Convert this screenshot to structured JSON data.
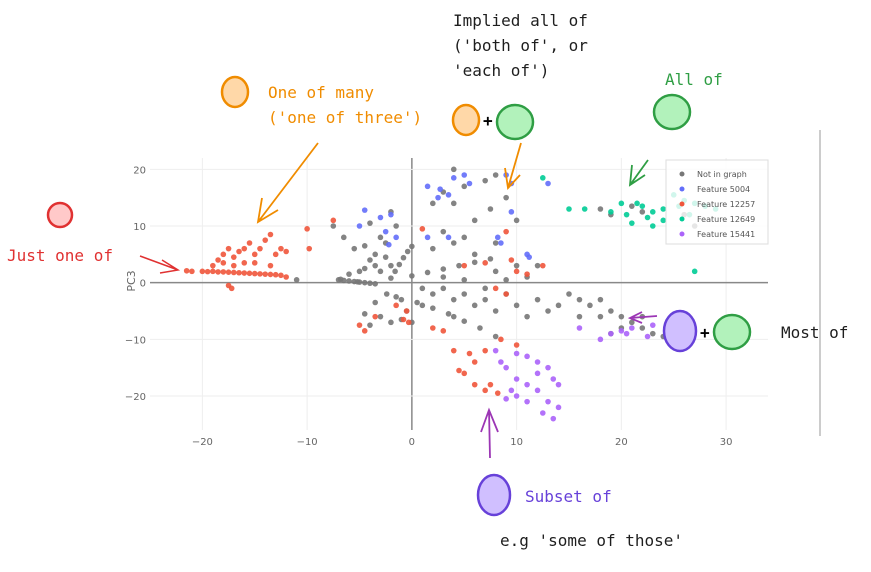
{
  "chart_data": {
    "type": "scatter",
    "title": "",
    "xlabel": "",
    "ylabel": "PC3",
    "xlim": [
      -25,
      34
    ],
    "ylim": [
      -26,
      22
    ],
    "x_ticks": [
      -20,
      -10,
      0,
      10,
      20,
      30
    ],
    "y_ticks": [
      20,
      10,
      0,
      -10,
      -20
    ],
    "grid": true,
    "legend_position": "top-right",
    "series": [
      {
        "name": "Not in graph",
        "color": "#777777",
        "points": [
          [
            -7,
            0.5
          ],
          [
            -6.5,
            0.4
          ],
          [
            -6,
            0.3
          ],
          [
            -5.5,
            0.2
          ],
          [
            -5,
            0.1
          ],
          [
            -4.5,
            0
          ],
          [
            -4,
            -0.1
          ],
          [
            -3.5,
            -0.2
          ],
          [
            -6.8,
            0.6
          ],
          [
            -5.2,
            0.15
          ],
          [
            -2,
            0.8
          ],
          [
            -1.6,
            2
          ],
          [
            -1.2,
            3.2
          ],
          [
            -0.8,
            4.4
          ],
          [
            -0.4,
            5.5
          ],
          [
            0,
            6.4
          ],
          [
            0,
            1.2
          ],
          [
            1.5,
            1.8
          ],
          [
            3,
            2.4
          ],
          [
            4.5,
            3
          ],
          [
            6,
            3.6
          ],
          [
            7.5,
            4.2
          ],
          [
            -2.4,
            -2
          ],
          [
            -1,
            -3
          ],
          [
            0.5,
            -3.5
          ],
          [
            2,
            -4.5
          ],
          [
            3.5,
            -5.5
          ],
          [
            5,
            -6.8
          ],
          [
            6.5,
            -8
          ],
          [
            8,
            -9.5
          ],
          [
            -1.5,
            -2.5
          ],
          [
            1,
            -4
          ],
          [
            4,
            -6
          ],
          [
            -7.5,
            10
          ],
          [
            -6.5,
            8
          ],
          [
            -5.5,
            6
          ],
          [
            -4.5,
            6.5
          ],
          [
            -4,
            4
          ],
          [
            -3.5,
            5
          ],
          [
            -3,
            8
          ],
          [
            -2.5,
            7
          ],
          [
            -2,
            3
          ],
          [
            -3,
            2
          ],
          [
            -5,
            2
          ],
          [
            -6,
            1.5
          ],
          [
            -4,
            10.5
          ],
          [
            -2,
            12.5
          ],
          [
            -1.5,
            10
          ],
          [
            -3.5,
            3
          ],
          [
            -2.5,
            4.5
          ],
          [
            -4.5,
            2.5
          ],
          [
            -11,
            0.5
          ],
          [
            -4.5,
            -5.5
          ],
          [
            -4,
            -7.5
          ],
          [
            -3,
            -6
          ],
          [
            -2,
            -7
          ],
          [
            -1,
            -6.5
          ],
          [
            -0.5,
            -5
          ],
          [
            0,
            -7
          ],
          [
            -3.5,
            -3.5
          ],
          [
            1,
            -1
          ],
          [
            2,
            -2
          ],
          [
            3,
            -1
          ],
          [
            4,
            -3
          ],
          [
            5,
            -2
          ],
          [
            6,
            -4
          ],
          [
            7,
            -3
          ],
          [
            8,
            -5
          ],
          [
            9,
            -2
          ],
          [
            10,
            -4
          ],
          [
            11,
            -6
          ],
          [
            7,
            -1
          ],
          [
            5,
            0.5
          ],
          [
            3,
            1
          ],
          [
            8,
            2
          ],
          [
            9,
            0.5
          ],
          [
            10,
            3
          ],
          [
            11,
            1
          ],
          [
            12,
            3
          ],
          [
            6,
            5
          ],
          [
            4,
            7
          ],
          [
            2,
            6
          ],
          [
            8,
            7
          ],
          [
            12,
            -3
          ],
          [
            13,
            -5
          ],
          [
            4,
            20
          ],
          [
            7,
            18
          ],
          [
            8,
            19
          ],
          [
            5,
            17
          ],
          [
            3,
            16
          ],
          [
            7.5,
            13
          ],
          [
            9,
            15
          ],
          [
            2,
            14
          ],
          [
            4,
            14
          ],
          [
            6,
            11
          ],
          [
            10,
            11
          ],
          [
            3,
            9
          ],
          [
            5,
            8
          ],
          [
            15,
            -2
          ],
          [
            16,
            -3
          ],
          [
            17,
            -4
          ],
          [
            18,
            -3
          ],
          [
            19,
            -5
          ],
          [
            20,
            -6
          ],
          [
            21,
            -7
          ],
          [
            22,
            -8
          ],
          [
            23,
            -9
          ],
          [
            18,
            -6
          ],
          [
            20,
            -8
          ],
          [
            16,
            -6
          ],
          [
            22,
            -6
          ],
          [
            14,
            -4
          ],
          [
            19,
            -9
          ],
          [
            24,
            -9.5
          ],
          [
            18,
            13
          ],
          [
            19,
            12
          ],
          [
            21,
            13.5
          ],
          [
            22,
            12.5
          ],
          [
            26,
            12
          ],
          [
            27,
            10
          ]
        ]
      },
      {
        "name": "Feature 5004",
        "color": "#636efa",
        "points": [
          [
            -3,
            11.5
          ],
          [
            -2,
            12
          ],
          [
            -2.5,
            9
          ],
          [
            -1.5,
            8
          ],
          [
            -5,
            10
          ],
          [
            -4.5,
            12.8
          ],
          [
            1.5,
            17
          ],
          [
            2.7,
            16.5
          ],
          [
            4,
            18.5
          ],
          [
            5,
            19
          ],
          [
            5.5,
            17.5
          ],
          [
            9,
            19
          ],
          [
            9.5,
            17.5
          ],
          [
            13,
            17.5
          ],
          [
            2.5,
            15
          ],
          [
            3.5,
            15.5
          ],
          [
            9.5,
            12.5
          ],
          [
            1.5,
            8
          ],
          [
            3.5,
            8
          ],
          [
            8.2,
            8
          ],
          [
            8.5,
            7
          ],
          [
            11,
            5
          ],
          [
            11.2,
            4.5
          ],
          [
            -2.2,
            6.7
          ]
        ]
      },
      {
        "name": "Feature 12257",
        "color": "#ef553b",
        "points": [
          [
            -21,
            2
          ],
          [
            -20,
            2
          ],
          [
            -19,
            2
          ],
          [
            -18,
            1.9
          ],
          [
            -17,
            1.8
          ],
          [
            -16,
            1.7
          ],
          [
            -15,
            1.6
          ],
          [
            -14,
            1.5
          ],
          [
            -13,
            1.4
          ],
          [
            -21.5,
            2.1
          ],
          [
            -19.5,
            1.95
          ],
          [
            -18.5,
            1.9
          ],
          [
            -17.5,
            1.85
          ],
          [
            -16.5,
            1.75
          ],
          [
            -15.5,
            1.65
          ],
          [
            -14.5,
            1.55
          ],
          [
            -13.5,
            1.45
          ],
          [
            -12.5,
            1.3
          ],
          [
            -12,
            1
          ],
          [
            -19,
            3
          ],
          [
            -18.5,
            4
          ],
          [
            -18,
            5
          ],
          [
            -17.5,
            6
          ],
          [
            -17,
            4.5
          ],
          [
            -16.5,
            5.5
          ],
          [
            -16,
            6
          ],
          [
            -15.5,
            7
          ],
          [
            -15,
            5
          ],
          [
            -14.5,
            6
          ],
          [
            -14,
            7.5
          ],
          [
            -13.5,
            8.5
          ],
          [
            -13,
            5
          ],
          [
            -12.5,
            6
          ],
          [
            -12,
            5.5
          ],
          [
            -18,
            3.5
          ],
          [
            -17,
            3
          ],
          [
            -16,
            3.5
          ],
          [
            -15,
            3.5
          ],
          [
            -13.5,
            3
          ],
          [
            -17.5,
            -0.5
          ],
          [
            -17.2,
            -1
          ],
          [
            -10,
            9.5
          ],
          [
            -9.8,
            6
          ],
          [
            -7.5,
            11
          ],
          [
            1,
            9.5
          ],
          [
            -5,
            -7.5
          ],
          [
            -4.5,
            -8.5
          ],
          [
            -3.5,
            -6
          ],
          [
            -1.5,
            -4
          ],
          [
            -0.5,
            -5
          ],
          [
            -0.8,
            -6.5
          ],
          [
            -0.3,
            -7
          ],
          [
            2,
            -8
          ],
          [
            3,
            -8.5
          ],
          [
            5,
            3
          ],
          [
            7,
            3.5
          ],
          [
            9.5,
            4
          ],
          [
            10,
            2
          ],
          [
            12.5,
            3
          ],
          [
            11,
            1.5
          ],
          [
            9,
            9
          ],
          [
            8,
            -1
          ],
          [
            9,
            -2
          ],
          [
            8.5,
            -10
          ],
          [
            7,
            -12
          ],
          [
            6,
            -14
          ],
          [
            5,
            -16
          ],
          [
            6,
            -18
          ],
          [
            7,
            -19
          ],
          [
            7.5,
            -18
          ],
          [
            8.2,
            -19.5
          ],
          [
            4,
            -12
          ],
          [
            5.5,
            -12.5
          ],
          [
            4.5,
            -15.5
          ],
          [
            10,
            -11
          ]
        ]
      },
      {
        "name": "Feature 12649",
        "color": "#00cc96",
        "points": [
          [
            16.5,
            13
          ],
          [
            15,
            13
          ],
          [
            20,
            14
          ],
          [
            20.5,
            12
          ],
          [
            21,
            10.5
          ],
          [
            22,
            13.5
          ],
          [
            23,
            12.5
          ],
          [
            24,
            11
          ],
          [
            25,
            15.5
          ],
          [
            26,
            14.5
          ],
          [
            27,
            14
          ],
          [
            28,
            13.5
          ],
          [
            29,
            13
          ],
          [
            22.5,
            11.5
          ],
          [
            24,
            13
          ],
          [
            25.5,
            13.5
          ],
          [
            26.5,
            12
          ],
          [
            23,
            10
          ],
          [
            27,
            2
          ],
          [
            12.5,
            18.5
          ],
          [
            19,
            12.5
          ],
          [
            21.5,
            14
          ]
        ]
      },
      {
        "name": "Feature 15441",
        "color": "#ab63fa",
        "points": [
          [
            8,
            -12
          ],
          [
            10,
            -12.5
          ],
          [
            11,
            -13
          ],
          [
            12,
            -14
          ],
          [
            13,
            -15
          ],
          [
            9,
            -15
          ],
          [
            10,
            -17
          ],
          [
            11,
            -18
          ],
          [
            12,
            -19
          ],
          [
            13,
            -21
          ],
          [
            14,
            -22
          ],
          [
            12.5,
            -23
          ],
          [
            13.5,
            -24
          ],
          [
            11,
            -21
          ],
          [
            10,
            -20
          ],
          [
            9,
            -20.5
          ],
          [
            9.5,
            -19
          ],
          [
            12,
            -16
          ],
          [
            14,
            -18
          ],
          [
            13.5,
            -17
          ],
          [
            8.5,
            -14
          ],
          [
            20,
            -8.5
          ],
          [
            19,
            -9
          ],
          [
            21,
            -8
          ],
          [
            22.5,
            -9.5
          ],
          [
            23,
            -7.5
          ],
          [
            18,
            -10
          ],
          [
            16,
            -8
          ],
          [
            20.5,
            -9
          ]
        ]
      }
    ]
  },
  "annotations": {
    "just_one_of": "Just one of",
    "one_of_many": [
      "One of many",
      "('one of three')"
    ],
    "implied_all_of": [
      "Implied all of",
      "('both of', or",
      "'each of')"
    ],
    "all_of": "All of",
    "most_of": "Most of",
    "subset_of": "Subset of",
    "example": "e.g 'some of those'",
    "plus": "+",
    "colors": {
      "red": "#e03131",
      "orange": "#f08c00",
      "green": "#2f9e44",
      "purple": "#6741d9",
      "violet": "#9c36b5"
    }
  }
}
